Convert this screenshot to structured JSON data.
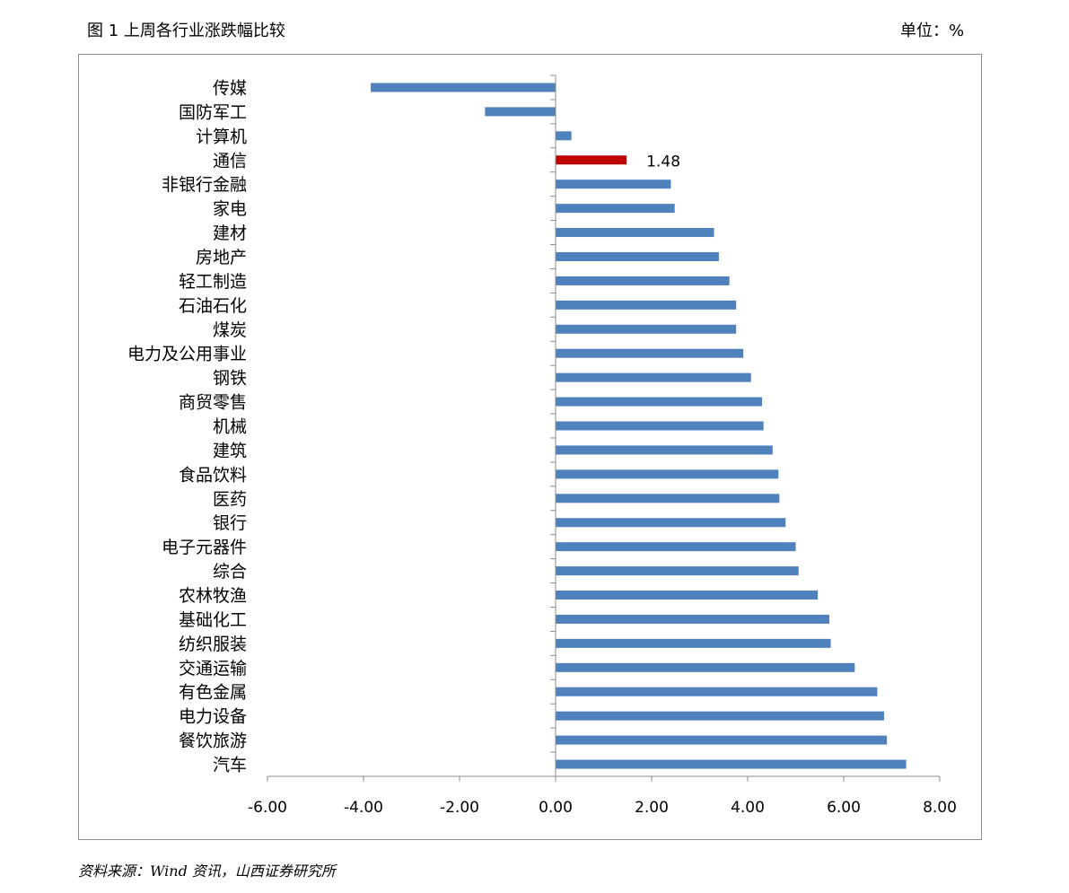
{
  "header": {
    "title": "图 1 上周各行业涨跌幅比较",
    "unit": "单位：%"
  },
  "footer": {
    "source": "资料来源：Wind 资讯，山西证券研究所"
  },
  "colors": {
    "bar": "#4F81BD",
    "highlight": "#C00000",
    "axis": "#8c8c8c"
  },
  "chart_data": {
    "type": "bar",
    "orientation": "horizontal",
    "categories": [
      "传媒",
      "国防军工",
      "计算机",
      "通信",
      "非银行金融",
      "家电",
      "建材",
      "房地产",
      "轻工制造",
      "石油石化",
      "煤炭",
      "电力及公用事业",
      "钢铁",
      "商贸零售",
      "机械",
      "建筑",
      "食品饮料",
      "医药",
      "银行",
      "电子元器件",
      "综合",
      "农林牧渔",
      "基础化工",
      "纺织服装",
      "交通运输",
      "有色金属",
      "电力设备",
      "餐饮旅游",
      "汽车"
    ],
    "values": [
      -3.85,
      -1.47,
      0.33,
      1.48,
      2.4,
      2.48,
      3.3,
      3.4,
      3.62,
      3.76,
      3.76,
      3.91,
      4.07,
      4.3,
      4.33,
      4.52,
      4.64,
      4.66,
      4.79,
      5.0,
      5.06,
      5.46,
      5.7,
      5.73,
      6.23,
      6.7,
      6.84,
      6.9,
      7.3
    ],
    "highlight_category": "通信",
    "data_labels": [
      {
        "category": "通信",
        "text": "1.48"
      }
    ],
    "xlim": [
      -6,
      8
    ],
    "xticks": [
      "-6.00",
      "-4.00",
      "-2.00",
      "0.00",
      "2.00",
      "4.00",
      "6.00",
      "8.00"
    ],
    "grid": false,
    "legend": "none"
  }
}
